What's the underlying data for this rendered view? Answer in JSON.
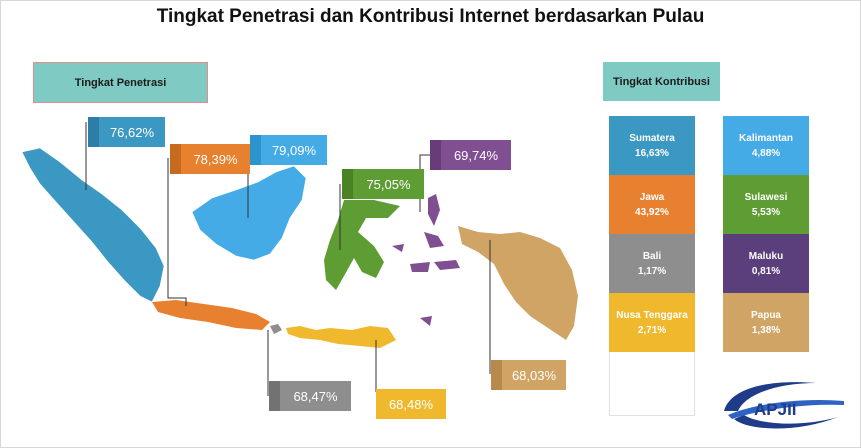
{
  "title": "Tingkat Penetrasi dan Kontribusi Internet berdasarkan Pulau",
  "headers": {
    "penetrasi": "Tingkat Penetrasi",
    "kontribusi": "Tingkat Kontribusi"
  },
  "colors": {
    "sumatera": "#3b98c2",
    "jawa": "#e7812f",
    "kalimantan": "#44abe6",
    "sulawesi": "#5e9d33",
    "maluku": "#7f4f92",
    "papua": "#d0a464",
    "bali": "#8e8e8e",
    "nusa_tenggara": "#f0b92d"
  },
  "chart_data": {
    "type": "table",
    "title": "Tingkat Penetrasi dan Kontribusi Internet berdasarkan Pulau",
    "penetration": [
      {
        "region": "Sumatera",
        "value": "76,62%"
      },
      {
        "region": "Jawa",
        "value": "78,39%"
      },
      {
        "region": "Kalimantan",
        "value": "79,09%"
      },
      {
        "region": "Sulawesi",
        "value": "75,05%"
      },
      {
        "region": "Maluku",
        "value": "69,74%"
      },
      {
        "region": "Bali",
        "value": "68,47%"
      },
      {
        "region": "Nusa Tenggara",
        "value": "68,48%"
      },
      {
        "region": "Papua",
        "value": "68,03%"
      }
    ],
    "contribution": [
      {
        "region": "Sumatera",
        "value": "16,63%"
      },
      {
        "region": "Jawa",
        "value": "43,92%"
      },
      {
        "region": "Bali",
        "value": "1,17%"
      },
      {
        "region": "Nusa Tenggara",
        "value": "2,71%"
      },
      {
        "region": "Kalimantan",
        "value": "4,88%"
      },
      {
        "region": "Sulawesi",
        "value": "5,53%"
      },
      {
        "region": "Maluku",
        "value": "0,81%"
      },
      {
        "region": "Papua",
        "value": "1,38%"
      }
    ]
  },
  "logo_text": "APJII"
}
